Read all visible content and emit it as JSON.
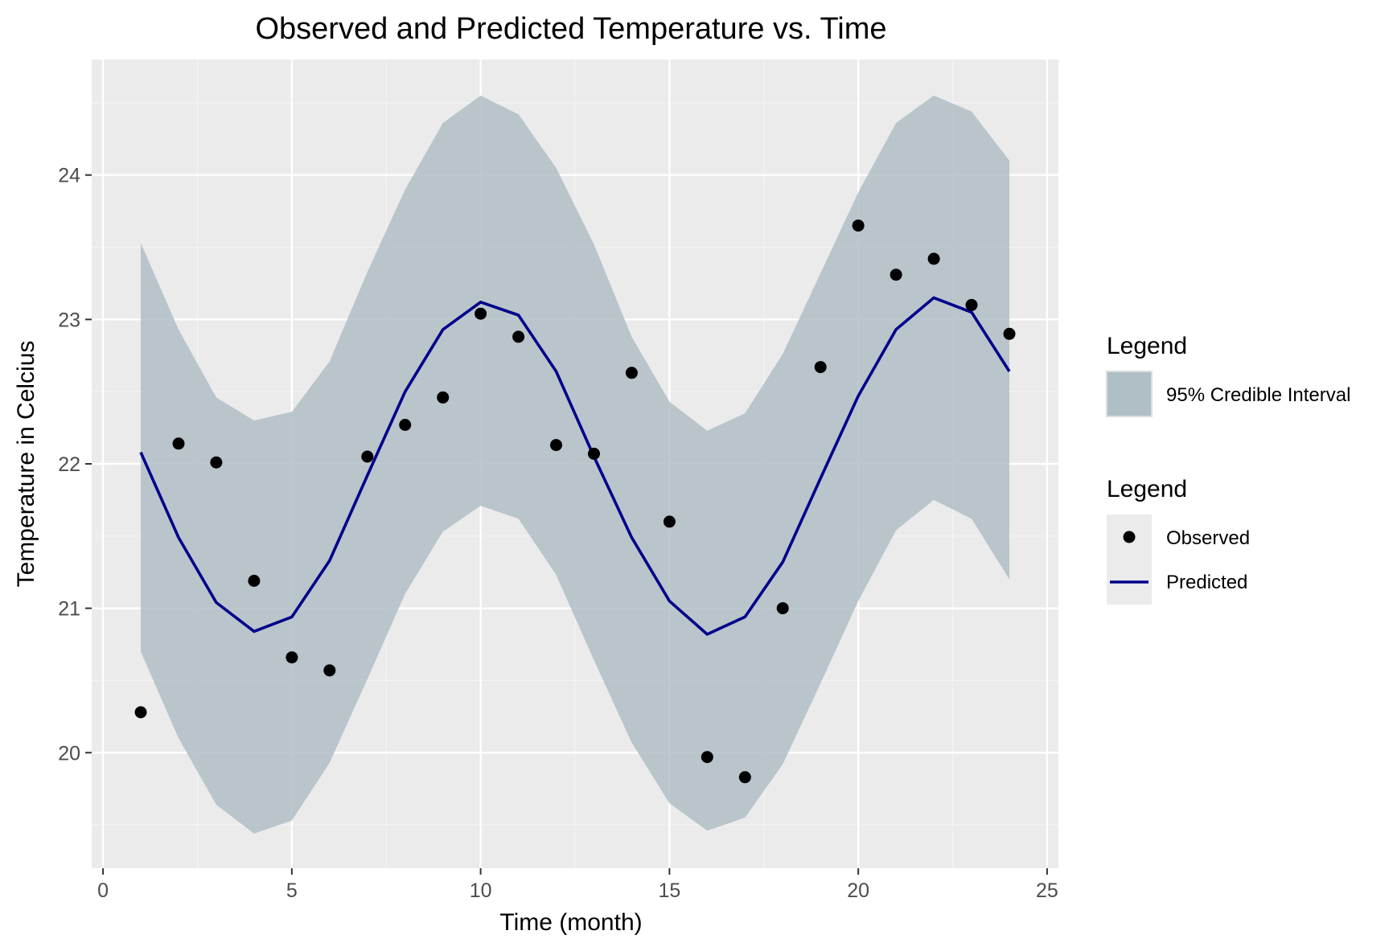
{
  "chart_data": {
    "type": "line",
    "title": "Observed and Predicted Temperature vs. Time",
    "xlabel": "Time (month)",
    "ylabel": "Temperature in Celcius",
    "xlim": [
      -0.3,
      25.3
    ],
    "ylim": [
      19.2,
      24.8
    ],
    "xticks": [
      0,
      5,
      10,
      15,
      20,
      25
    ],
    "yticks": [
      20,
      21,
      22,
      23,
      24
    ],
    "grid": true,
    "x": [
      1,
      2,
      3,
      4,
      5,
      6,
      7,
      8,
      9,
      10,
      11,
      12,
      13,
      14,
      15,
      16,
      17,
      18,
      19,
      20,
      21,
      22,
      23,
      24
    ],
    "series": [
      {
        "name": "95% Credible Interval",
        "kind": "band",
        "lower": [
          20.7,
          20.1,
          19.64,
          19.44,
          19.53,
          19.93,
          20.51,
          21.1,
          21.53,
          21.71,
          21.62,
          21.23,
          20.64,
          20.07,
          19.65,
          19.46,
          19.55,
          19.92,
          20.48,
          21.05,
          21.54,
          21.75,
          21.62,
          21.2
        ],
        "upper": [
          23.53,
          22.93,
          22.46,
          22.3,
          22.36,
          22.71,
          23.33,
          23.9,
          24.36,
          24.55,
          24.42,
          24.05,
          23.52,
          22.88,
          22.43,
          22.23,
          22.35,
          22.76,
          23.32,
          23.88,
          24.36,
          24.55,
          24.44,
          24.1
        ],
        "color": "#b0bec5"
      },
      {
        "name": "Predicted",
        "kind": "line",
        "values": [
          22.08,
          21.49,
          21.04,
          20.84,
          20.94,
          21.33,
          21.92,
          22.5,
          22.93,
          23.12,
          23.03,
          22.64,
          22.05,
          21.49,
          21.05,
          20.82,
          20.94,
          21.32,
          21.9,
          22.47,
          22.93,
          23.15,
          23.05,
          22.64
        ],
        "color": "#00008b"
      },
      {
        "name": "Observed",
        "kind": "points",
        "values": [
          20.28,
          22.14,
          22.01,
          21.19,
          20.66,
          20.57,
          22.05,
          22.27,
          22.46,
          23.04,
          22.88,
          22.13,
          22.07,
          22.63,
          21.6,
          19.97,
          19.83,
          21.0,
          22.67,
          23.65,
          23.31,
          23.42,
          23.1,
          22.9
        ],
        "color": "#000000"
      }
    ],
    "legend": {
      "position": "right",
      "groups": [
        {
          "title": "Legend",
          "items": [
            {
              "label": "95% Credible Interval",
              "key": "band"
            }
          ]
        },
        {
          "title": "Legend",
          "items": [
            {
              "label": "Observed",
              "key": "point"
            },
            {
              "label": "Predicted",
              "key": "line"
            }
          ]
        }
      ]
    },
    "colors": {
      "panel_bg": "#ebebeb",
      "grid_major": "#ffffff",
      "grid_minor": "#f4f4f4",
      "band_fill": "#b0bec5",
      "line": "#00008b",
      "point": "#000000",
      "tick_text": "#4d4d4d",
      "tick_mark": "#333333"
    }
  }
}
